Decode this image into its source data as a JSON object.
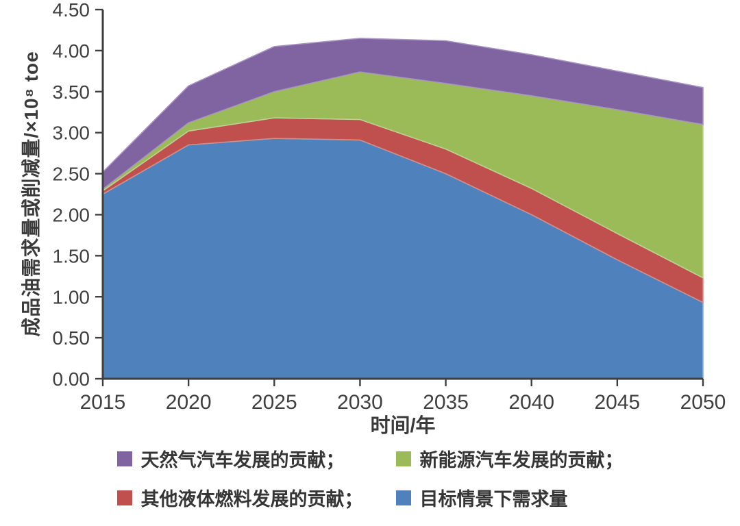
{
  "chart_data": {
    "type": "area",
    "stacked": true,
    "title": "",
    "xlabel": "时间/年",
    "ylabel": "成品油需求量或削减量/×10⁸ toe",
    "xlim": [
      2015,
      2050
    ],
    "ylim": [
      0,
      4.5
    ],
    "grid": false,
    "legend_position": "bottom",
    "x": [
      2015,
      2020,
      2025,
      2030,
      2035,
      2040,
      2045,
      2050
    ],
    "x_ticks": [
      {
        "v": 2015,
        "label": "2015"
      },
      {
        "v": 2020,
        "label": "2020"
      },
      {
        "v": 2025,
        "label": "2025"
      },
      {
        "v": 2030,
        "label": "2030"
      },
      {
        "v": 2035,
        "label": "2035"
      },
      {
        "v": 2040,
        "label": "2040"
      },
      {
        "v": 2045,
        "label": "2045"
      },
      {
        "v": 2050,
        "label": "2050"
      }
    ],
    "y_ticks": [
      {
        "v": 0.0,
        "label": "0.00"
      },
      {
        "v": 0.5,
        "label": "0.50"
      },
      {
        "v": 1.0,
        "label": "1.00"
      },
      {
        "v": 1.5,
        "label": "1.50"
      },
      {
        "v": 2.0,
        "label": "2.00"
      },
      {
        "v": 2.5,
        "label": "2.50"
      },
      {
        "v": 3.0,
        "label": "3.00"
      },
      {
        "v": 3.5,
        "label": "3.50"
      },
      {
        "v": 4.0,
        "label": "4.00"
      },
      {
        "v": 4.5,
        "label": "4.50"
      }
    ],
    "series": [
      {
        "id": "target-demand",
        "name": "目标情景下需求量",
        "color": "#4F81BD",
        "edge": "#8FAFD4",
        "values": [
          2.25,
          2.85,
          2.93,
          2.91,
          2.5,
          2.0,
          1.45,
          0.93
        ]
      },
      {
        "id": "other-liquid-fuels",
        "name": "其他液体燃料发展的贡献",
        "color": "#C0504D",
        "edge": "#D28E8B",
        "values": [
          0.04,
          0.17,
          0.25,
          0.25,
          0.3,
          0.32,
          0.32,
          0.3
        ]
      },
      {
        "id": "new-energy-vehicles",
        "name": "新能源汽车发展的贡献",
        "color": "#9BBB59",
        "edge": "#BCD291",
        "values": [
          0.02,
          0.1,
          0.32,
          0.58,
          0.8,
          1.13,
          1.51,
          1.87
        ]
      },
      {
        "id": "natural-gas-vehicles",
        "name": "天然气汽车发展的贡献",
        "color": "#8064A2",
        "edge": "#A693BF",
        "values": [
          0.21,
          0.45,
          0.55,
          0.41,
          0.52,
          0.5,
          0.47,
          0.45
        ]
      }
    ],
    "cumulative_tops": {
      "target-demand": [
        2.25,
        2.85,
        2.93,
        2.91,
        2.5,
        2.0,
        1.45,
        0.93
      ],
      "other-liquid-fuels": [
        2.29,
        3.02,
        3.18,
        3.16,
        2.8,
        2.32,
        1.77,
        1.23
      ],
      "new-energy-vehicles": [
        2.31,
        3.12,
        3.5,
        3.74,
        3.6,
        3.45,
        3.28,
        3.1
      ],
      "natural-gas-vehicles": [
        2.52,
        3.57,
        4.05,
        4.15,
        4.12,
        3.95,
        3.75,
        3.55
      ]
    },
    "legend": [
      {
        "label": "天然气汽车发展的贡献；",
        "color": "#8064A2",
        "series_id": "natural-gas-vehicles"
      },
      {
        "label": "新能源汽车发展的贡献；",
        "color": "#9BBB59",
        "series_id": "new-energy-vehicles"
      },
      {
        "label": "其他液体燃料发展的贡献；",
        "color": "#C0504D",
        "series_id": "other-liquid-fuels"
      },
      {
        "label": "目标情景下需求量",
        "color": "#4F81BD",
        "series_id": "target-demand"
      }
    ],
    "axis_color": "#3f3f3f"
  }
}
